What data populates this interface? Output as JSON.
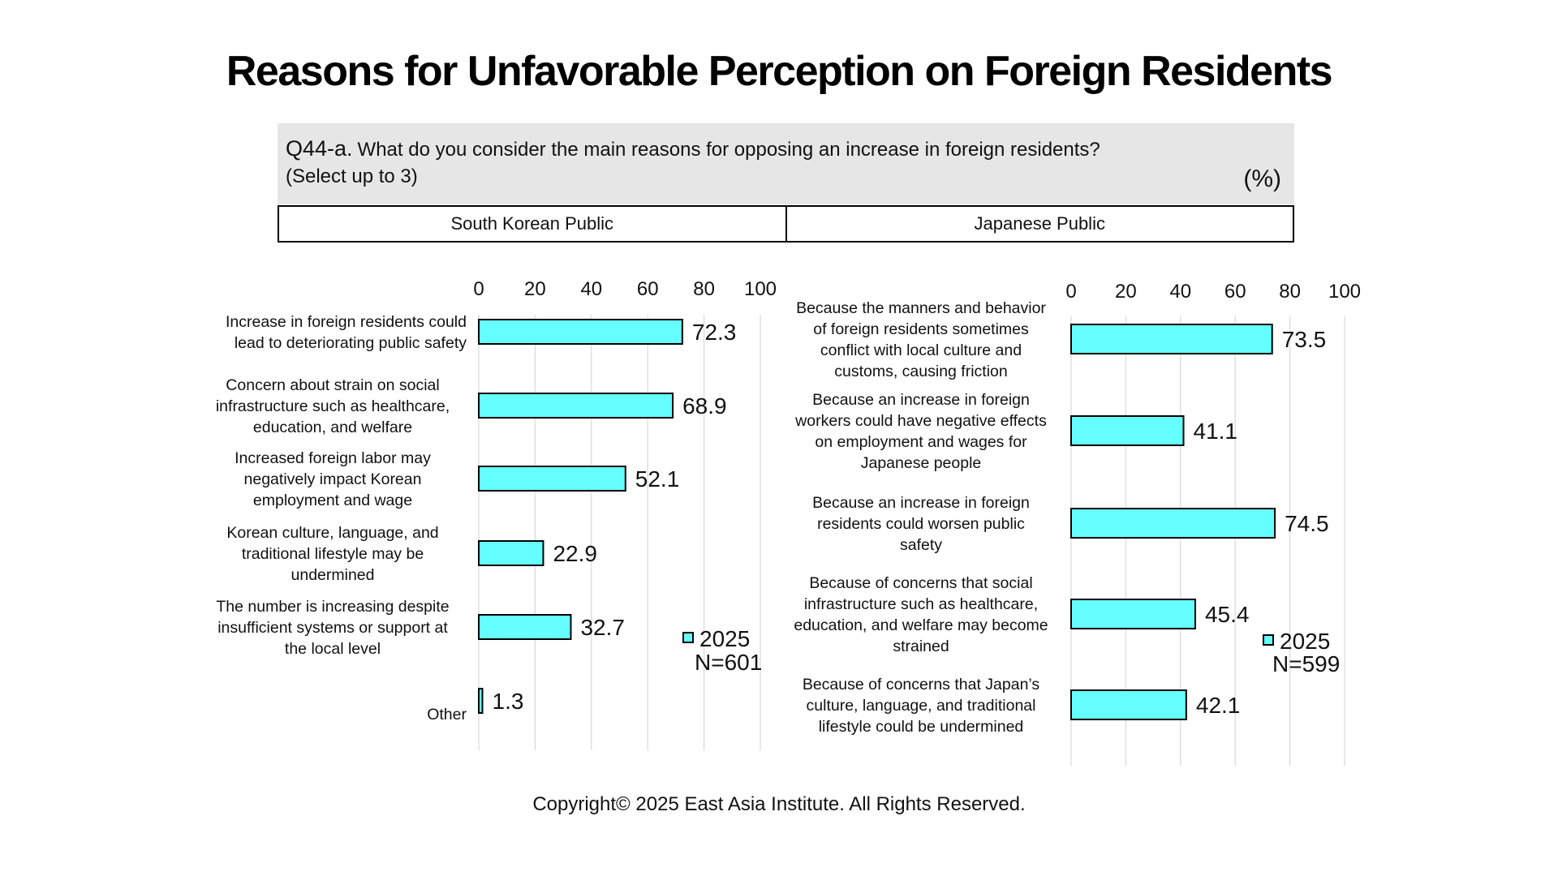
{
  "title": "Reasons for Unfavorable Perception on Foreign Residents",
  "question": {
    "id": "Q44-a.",
    "text": "What do you consider the main reasons for opposing an increase in foreign residents?",
    "note": "(Select up to 3)",
    "unit": "(%)"
  },
  "headers": [
    "South Korean Public",
    "Japanese Public"
  ],
  "footer": "Copyright© 2025 East Asia Institute. All Rights Reserved.",
  "colors": {
    "bar_fill": "#66FFFF",
    "bar_stroke": "#000000",
    "grid": "#d9d9d9"
  },
  "chart_data": [
    {
      "type": "bar",
      "orientation": "horizontal",
      "group": "South Korean Public",
      "categories": [
        "Increase in foreign residents could lead to deteriorating public safety",
        "Concern about strain on social infrastructure such as healthcare, education, and welfare",
        "Increased foreign labor may negatively impact Korean employment and wage",
        "Korean culture, language, and traditional lifestyle may be undermined",
        "The number is increasing despite insufficient systems or support at the local level",
        "Other"
      ],
      "series": [
        {
          "name": "2025",
          "values": [
            72.3,
            68.9,
            52.1,
            22.9,
            32.7,
            1.3
          ]
        }
      ],
      "n_label": "N=601",
      "xlim": [
        0,
        100
      ],
      "xticks": [
        0,
        20,
        40,
        60,
        80,
        100
      ],
      "axis_position": "top",
      "grid": true,
      "legend_position": "bottom-right"
    },
    {
      "type": "bar",
      "orientation": "horizontal",
      "group": "Japanese Public",
      "categories": [
        "Because the manners and behavior of foreign residents sometimes conflict with local culture and customs, causing friction",
        "Because an increase in foreign workers could have negative effects on employment and wages for Japanese people",
        "Because an increase in foreign residents could worsen public safety",
        "Because of concerns that social infrastructure such as healthcare, education, and welfare may become strained",
        "Because of concerns that Japan's culture, language, and traditional lifestyle could be undermined"
      ],
      "series": [
        {
          "name": "2025",
          "values": [
            73.5,
            41.1,
            74.5,
            45.4,
            42.1
          ]
        }
      ],
      "n_label": "N=599",
      "xlim": [
        0,
        100
      ],
      "xticks": [
        0,
        20,
        40,
        60,
        80,
        100
      ],
      "axis_position": "top",
      "grid": true,
      "legend_position": "bottom-right"
    }
  ]
}
